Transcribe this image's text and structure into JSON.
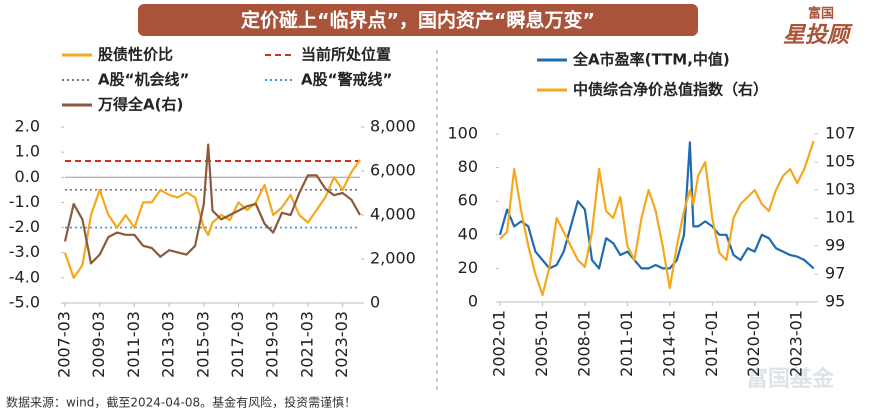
{
  "header": {
    "title": "定价碰上“临界点”，国内资产“瞬息万变”"
  },
  "logo": {
    "brand": "富国",
    "product": "星投顾"
  },
  "footer": {
    "source": "数据来源：wind，截至2024-04-08。基金有风险，投资需谨慎！",
    "watermark": "富国基金"
  },
  "chart_data": [
    {
      "type": "line",
      "x": [
        "2007-03",
        "2007-09",
        "2008-03",
        "2008-09",
        "2009-03",
        "2009-09",
        "2010-03",
        "2010-09",
        "2011-03",
        "2011-09",
        "2012-03",
        "2012-09",
        "2013-03",
        "2013-09",
        "2014-03",
        "2014-09",
        "2015-03",
        "2015-06",
        "2015-09",
        "2016-03",
        "2016-09",
        "2017-03",
        "2017-09",
        "2018-03",
        "2018-09",
        "2019-03",
        "2019-09",
        "2020-03",
        "2020-09",
        "2021-03",
        "2021-09",
        "2022-03",
        "2022-09",
        "2023-03",
        "2023-09",
        "2024-03"
      ],
      "xticks": [
        "2007-03",
        "2009-03",
        "2011-03",
        "2013-03",
        "2015-03",
        "2017-03",
        "2019-03",
        "2021-03",
        "2023-03"
      ],
      "ylim": [
        -5,
        2
      ],
      "yticks": [
        {
          "value": 2,
          "label": "2.0"
        },
        {
          "value": 1,
          "label": "1.0"
        },
        {
          "value": 0,
          "label": "0.0"
        },
        {
          "value": -1,
          "label": "-1.0"
        },
        {
          "value": -2,
          "label": "-2.0"
        },
        {
          "value": -3,
          "label": "-3.0"
        },
        {
          "value": -4,
          "label": "-4.0"
        },
        {
          "value": -5,
          "label": "-5.0"
        }
      ],
      "y2lim": [
        0,
        8000
      ],
      "y2ticks": [
        {
          "value": 8000,
          "label": "8,000"
        },
        {
          "value": 6000,
          "label": "6,000"
        },
        {
          "value": 4000,
          "label": "4,000"
        },
        {
          "value": 2000,
          "label": "2,000"
        },
        0
      ],
      "series": [
        {
          "name": "股债性价比",
          "color": "#f5a81c",
          "values": [
            -3.0,
            -4.0,
            -3.5,
            -1.5,
            -0.5,
            -1.5,
            -2.0,
            -1.5,
            -2.0,
            -1.0,
            -1.0,
            -0.5,
            -0.7,
            -0.8,
            -0.6,
            -0.8,
            -2.0,
            -2.3,
            -1.8,
            -1.5,
            -1.7,
            -1.0,
            -1.3,
            -1.0,
            -0.3,
            -1.5,
            -1.2,
            -0.7,
            -1.5,
            -1.8,
            -1.3,
            -0.8,
            0.0,
            -0.5,
            0.2,
            0.7
          ]
        },
        {
          "name": "万得全A(右)",
          "color": "#8b5a3c",
          "axis": "y2",
          "values": [
            2800,
            4500,
            3800,
            1800,
            2200,
            3000,
            3200,
            3100,
            3100,
            2600,
            2500,
            2100,
            2400,
            2300,
            2200,
            2600,
            4500,
            7200,
            4200,
            3800,
            4000,
            4200,
            4400,
            4500,
            3600,
            3200,
            4100,
            4000,
            5000,
            5800,
            5800,
            5200,
            4900,
            5000,
            4700,
            4000
          ]
        }
      ],
      "reference_lines": [
        {
          "name": "当前所处位置",
          "color": "#d62d20",
          "style": "dashed",
          "value": 0.65
        },
        {
          "name": "A股“机会线”",
          "color": "#777777",
          "style": "dotted",
          "value": -0.5
        },
        {
          "name": "A股“警戒线”",
          "color": "#3a9bd5",
          "style": "dotted",
          "value": -2.0
        }
      ]
    },
    {
      "type": "line",
      "x": [
        "2002-01",
        "2002-07",
        "2003-01",
        "2003-07",
        "2004-01",
        "2004-07",
        "2005-01",
        "2005-07",
        "2006-01",
        "2006-07",
        "2007-01",
        "2007-07",
        "2008-01",
        "2008-07",
        "2009-01",
        "2009-07",
        "2010-01",
        "2010-07",
        "2011-01",
        "2011-07",
        "2012-01",
        "2012-07",
        "2013-01",
        "2013-07",
        "2014-01",
        "2014-07",
        "2015-01",
        "2015-06",
        "2015-09",
        "2016-01",
        "2016-07",
        "2017-01",
        "2017-07",
        "2018-01",
        "2018-07",
        "2019-01",
        "2019-07",
        "2020-01",
        "2020-07",
        "2021-01",
        "2021-07",
        "2022-01",
        "2022-07",
        "2023-01",
        "2023-07",
        "2024-03"
      ],
      "xticks": [
        "2002-01",
        "2005-01",
        "2008-01",
        "2011-01",
        "2014-01",
        "2017-01",
        "2020-01",
        "2023-01"
      ],
      "ylim": [
        0,
        100
      ],
      "yticks": [
        100,
        80,
        60,
        40,
        20,
        0
      ],
      "y2lim": [
        95,
        107
      ],
      "y2ticks": [
        107,
        105,
        103,
        101,
        99,
        97,
        95
      ],
      "series": [
        {
          "name": "全A市盈率(TTM,中值)",
          "color": "#1f6bb0",
          "values": [
            40,
            55,
            45,
            48,
            45,
            30,
            25,
            20,
            22,
            30,
            45,
            60,
            55,
            25,
            20,
            38,
            35,
            28,
            30,
            25,
            20,
            20,
            22,
            20,
            20,
            25,
            40,
            95,
            45,
            45,
            48,
            45,
            40,
            40,
            28,
            25,
            32,
            30,
            40,
            38,
            32,
            30,
            28,
            27,
            25,
            20
          ]
        },
        {
          "name": "中债综合净价总值指数（右）",
          "color": "#f5a81c",
          "axis": "y2",
          "values": [
            99.5,
            100,
            104.5,
            101.5,
            99,
            97,
            95.5,
            97.5,
            101,
            100,
            99,
            98,
            97.5,
            100,
            104.5,
            101.5,
            101,
            102.5,
            99,
            98,
            101,
            103,
            101.5,
            99,
            96,
            99,
            101.5,
            103,
            102,
            104,
            105,
            101,
            98.5,
            98,
            101,
            102,
            102.5,
            103,
            102,
            101.5,
            103,
            104,
            104.5,
            103.5,
            104.5,
            106.5
          ]
        }
      ]
    }
  ]
}
